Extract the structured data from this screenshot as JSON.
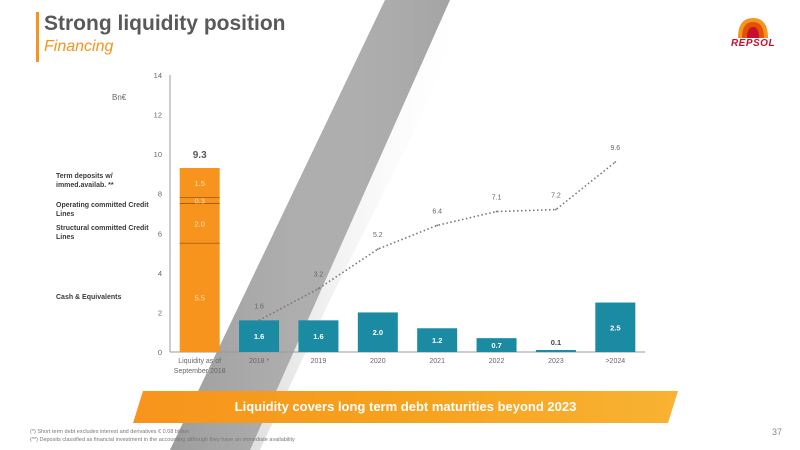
{
  "header": {
    "title": "Strong liquidity position",
    "subtitle": "Financing"
  },
  "logo": {
    "text": "REPSOL"
  },
  "side_labels": {
    "term_deposits": "Term deposits w/ immed.availab. **",
    "operating": "Operating committed Credit Lines",
    "structural": "Structural committed Credit Lines",
    "cash": "Cash & Equivalents"
  },
  "banner": {
    "text": "Liquidity covers  long term debt maturities beyond 2023"
  },
  "footnotes": [
    "(*) Short term debt excludes interest and derivatives € 0.08 billion",
    "(**) Deposits classified as financial investment in the accounting although they have an immediate availability"
  ],
  "page_number": "37",
  "colors": {
    "orange": "#f7941d",
    "teal": "#1b8aa3",
    "grey_text": "#58595b",
    "line": "#777777"
  },
  "chart_data": {
    "type": "bar",
    "ylabel": "Bn€",
    "ylim": [
      0,
      14
    ],
    "yticks": [
      "0",
      "2",
      "4",
      "6",
      "8",
      "10",
      "12",
      "14"
    ],
    "categories": [
      "Liquidity as of September 2018",
      "2018 *",
      "2019",
      "2020",
      "2021",
      "2022",
      "2023",
      ">2024"
    ],
    "liquidity_stack": [
      {
        "name": "Cash & Equivalents",
        "value": 5.5,
        "label": "5.5"
      },
      {
        "name": "Structural committed Credit Lines",
        "value": 2.0,
        "label": "2.0"
      },
      {
        "name": "Operating committed Credit Lines",
        "value": 0.3,
        "label": "0.3"
      },
      {
        "name": "Term deposits w/ immed.availab.",
        "value": 1.5,
        "label": "1.5"
      }
    ],
    "liquidity_total": 9.3,
    "liquidity_total_label": "9.3",
    "maturities": [
      {
        "category": "2018 *",
        "value": 1.6,
        "label": "1.6"
      },
      {
        "category": "2019",
        "value": 1.6,
        "label": "1.6"
      },
      {
        "category": "2020",
        "value": 2.0,
        "label": "2.0"
      },
      {
        "category": "2021",
        "value": 1.2,
        "label": "1.2"
      },
      {
        "category": "2022",
        "value": 0.7,
        "label": "0.7"
      },
      {
        "category": "2023",
        "value": 0.1,
        "label": "0.1"
      },
      {
        "category": ">2024",
        "value": 2.5,
        "label": "2.5"
      }
    ],
    "cumulative": [
      {
        "category": "2018 *",
        "value": 1.6,
        "label": "1.6"
      },
      {
        "category": "2019",
        "value": 3.2,
        "label": "3.2"
      },
      {
        "category": "2020",
        "value": 5.2,
        "label": "5.2"
      },
      {
        "category": "2021",
        "value": 6.4,
        "label": "6.4"
      },
      {
        "category": "2022",
        "value": 7.1,
        "label": "7.1"
      },
      {
        "category": "2023",
        "value": 7.2,
        "label": "7.2"
      },
      {
        "category": ">2024",
        "value": 9.6,
        "label": "9.6"
      }
    ]
  }
}
